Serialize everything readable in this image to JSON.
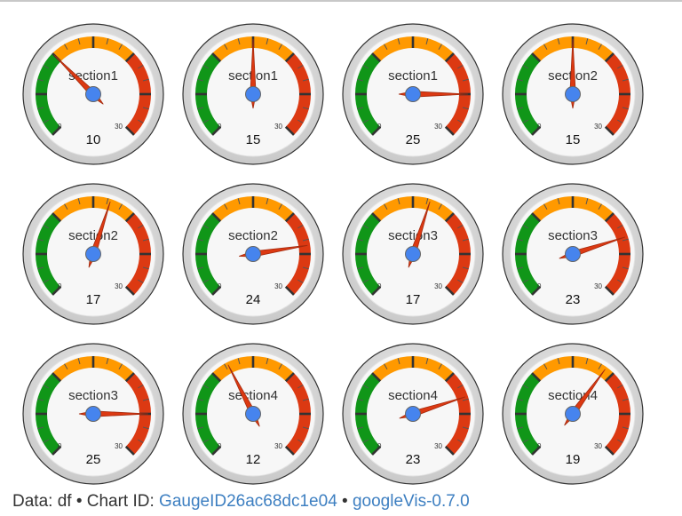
{
  "chart_data": {
    "type": "gauge",
    "min": 0,
    "max": 30,
    "bands": [
      {
        "from": 0,
        "to": 10,
        "color": "#109618"
      },
      {
        "from": 10,
        "to": 20,
        "color": "#ff9900"
      },
      {
        "from": 20,
        "to": 30,
        "color": "#dc3912"
      }
    ],
    "gauges": [
      {
        "label": "section1",
        "value": 10
      },
      {
        "label": "section1",
        "value": 15
      },
      {
        "label": "section1",
        "value": 25
      },
      {
        "label": "section2",
        "value": 15
      },
      {
        "label": "section2",
        "value": 17
      },
      {
        "label": "section2",
        "value": 24
      },
      {
        "label": "section3",
        "value": 17
      },
      {
        "label": "section3",
        "value": 23
      },
      {
        "label": "section3",
        "value": 25
      },
      {
        "label": "section4",
        "value": 12
      },
      {
        "label": "section4",
        "value": 23
      },
      {
        "label": "section4",
        "value": 19
      }
    ]
  },
  "colors": {
    "needle": "#dc3912",
    "hub": "#4684ee",
    "link": "#3d7fc1"
  },
  "footer": {
    "prefix": "Data: df • Chart ID: ",
    "chart_id": "GaugeID26ac68dc1e04",
    "separator": " • ",
    "package": "googleVis-0.7.0"
  }
}
